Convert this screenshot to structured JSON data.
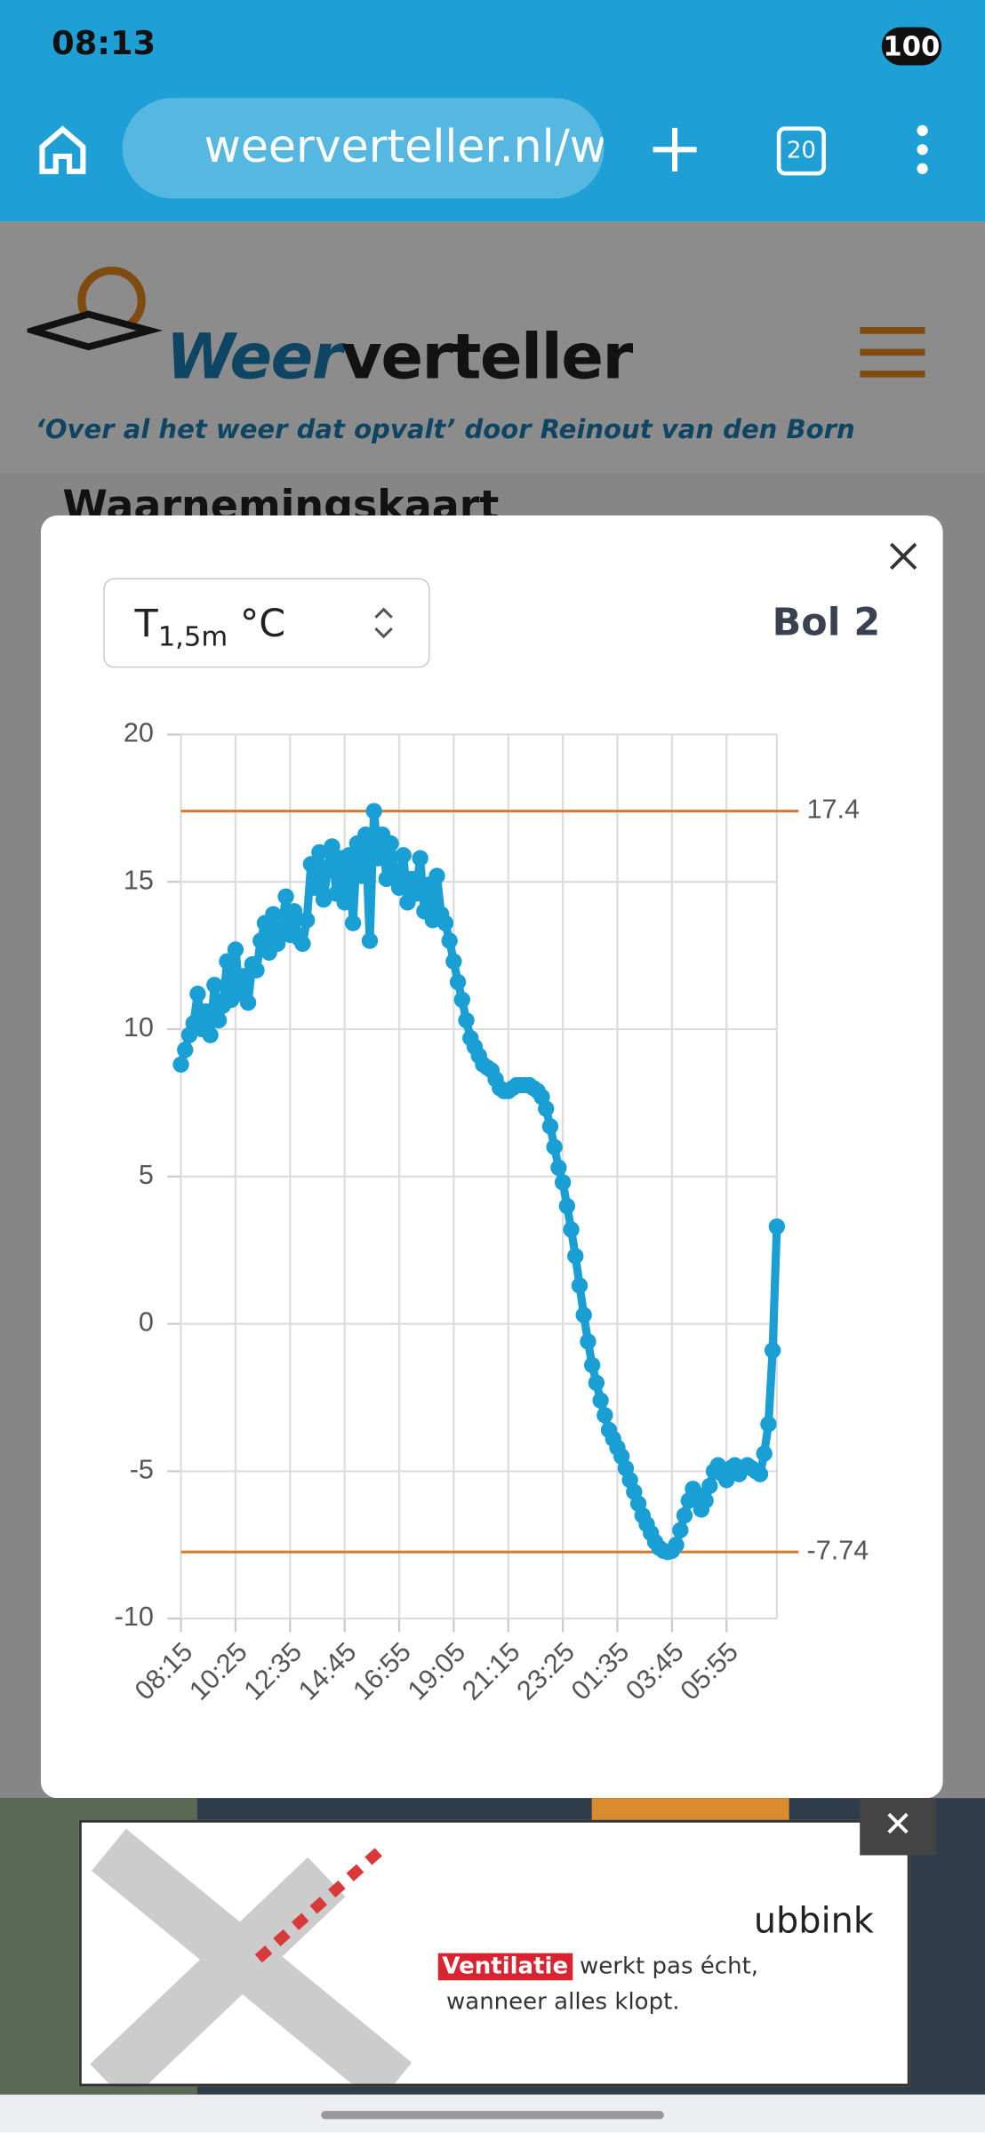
{
  "status_bar": {
    "time": "08:13",
    "battery": "100"
  },
  "browser": {
    "url": "weerverteller.nl/wa",
    "tabs": "20"
  },
  "site": {
    "logo_first": "Weer",
    "logo_rest": "verteller",
    "tagline": "‘Over al het weer dat opvalt’ door Reinout van den Born",
    "page_heading": "Waarnemingskaart"
  },
  "modal": {
    "select_symbol": "T",
    "select_sub": "1,5m",
    "select_unit": "°C",
    "station": "Bol 2"
  },
  "ad": {
    "brand": "ubbink",
    "highlight": "Ventilatie",
    "line1": "werkt pas écht,",
    "line2": "wanneer alles klopt."
  },
  "chart_data": {
    "type": "line",
    "color": "#1a9fd4",
    "categories": [
      "08:15",
      null,
      null,
      null,
      null,
      null,
      null,
      null,
      null,
      null,
      null,
      null,
      null,
      "10:25",
      null,
      null,
      null,
      null,
      null,
      null,
      null,
      null,
      null,
      null,
      null,
      null,
      "12:35",
      null,
      null,
      null,
      null,
      null,
      null,
      null,
      null,
      null,
      null,
      null,
      null,
      "14:45",
      null,
      null,
      null,
      null,
      null,
      null,
      null,
      null,
      null,
      null,
      null,
      null,
      "16:55",
      null,
      null,
      null,
      null,
      null,
      null,
      null,
      null,
      null,
      null,
      null,
      null,
      "19:05",
      null,
      null,
      null,
      null,
      null,
      null,
      null,
      null,
      null,
      null,
      null,
      null,
      "21:15",
      null,
      null,
      null,
      null,
      null,
      null,
      null,
      null,
      null,
      null,
      null,
      null,
      "23:25",
      null,
      null,
      null,
      null,
      null,
      null,
      null,
      null,
      null,
      null,
      null,
      null,
      "01:35",
      null,
      null,
      null,
      null,
      null,
      null,
      null,
      null,
      null,
      null,
      null,
      null,
      "03:45",
      null,
      null,
      null,
      null,
      null,
      null,
      null,
      null,
      null,
      null,
      null,
      null,
      "05:55",
      null,
      null,
      null,
      null,
      null,
      null,
      null,
      null,
      null,
      null,
      null,
      null
    ],
    "values": [
      8.8,
      9.3,
      9.8,
      10.2,
      11.2,
      10.0,
      10.6,
      9.8,
      11.5,
      10.3,
      10.8,
      12.3,
      11.0,
      12.7,
      11.2,
      11.8,
      10.9,
      12.2,
      12.0,
      13.0,
      13.6,
      12.6,
      13.9,
      12.9,
      13.4,
      14.5,
      13.2,
      14.0,
      13.1,
      12.9,
      13.7,
      15.6,
      14.8,
      16.0,
      14.4,
      15.5,
      16.2,
      14.6,
      15.8,
      14.3,
      15.9,
      13.6,
      16.3,
      15.2,
      16.6,
      13.0,
      17.4,
      15.8,
      16.6,
      15.1,
      16.3,
      15.4,
      14.8,
      15.9,
      14.3,
      15.1,
      14.6,
      15.8,
      14.0,
      14.9,
      13.7,
      15.2,
      13.9,
      13.6,
      13.0,
      12.3,
      11.6,
      11.0,
      10.3,
      9.7,
      9.4,
      9.1,
      8.8,
      8.7,
      8.6,
      8.3,
      8.0,
      7.9,
      7.9,
      8.0,
      8.1,
      8.1,
      8.1,
      8.1,
      8.0,
      7.9,
      7.7,
      7.3,
      6.7,
      6.0,
      5.3,
      4.8,
      4.0,
      3.2,
      2.3,
      1.3,
      0.3,
      -0.6,
      -1.4,
      -2.0,
      -2.6,
      -3.1,
      -3.6,
      -3.9,
      -4.2,
      -4.5,
      -4.9,
      -5.3,
      -5.7,
      -6.1,
      -6.5,
      -6.8,
      -7.1,
      -7.4,
      -7.6,
      -7.7,
      -7.74,
      -7.7,
      -7.5,
      -7.0,
      -6.5,
      -6.0,
      -5.6,
      -5.8,
      -6.3,
      -6.0,
      -5.5,
      -5.0,
      -4.8,
      -5.1,
      -5.3,
      -4.9,
      -4.8,
      -5.1,
      -4.9,
      -4.8,
      -4.9,
      -5.0,
      -5.1,
      -4.4,
      -3.4,
      -0.9,
      3.3
    ],
    "ylim": [
      -10,
      20
    ],
    "yticks": [
      -10,
      -5,
      0,
      5,
      10,
      15,
      20
    ],
    "grid": true,
    "reference_lines": [
      17.4,
      -7.74
    ],
    "reference_color": "#d9782b"
  }
}
